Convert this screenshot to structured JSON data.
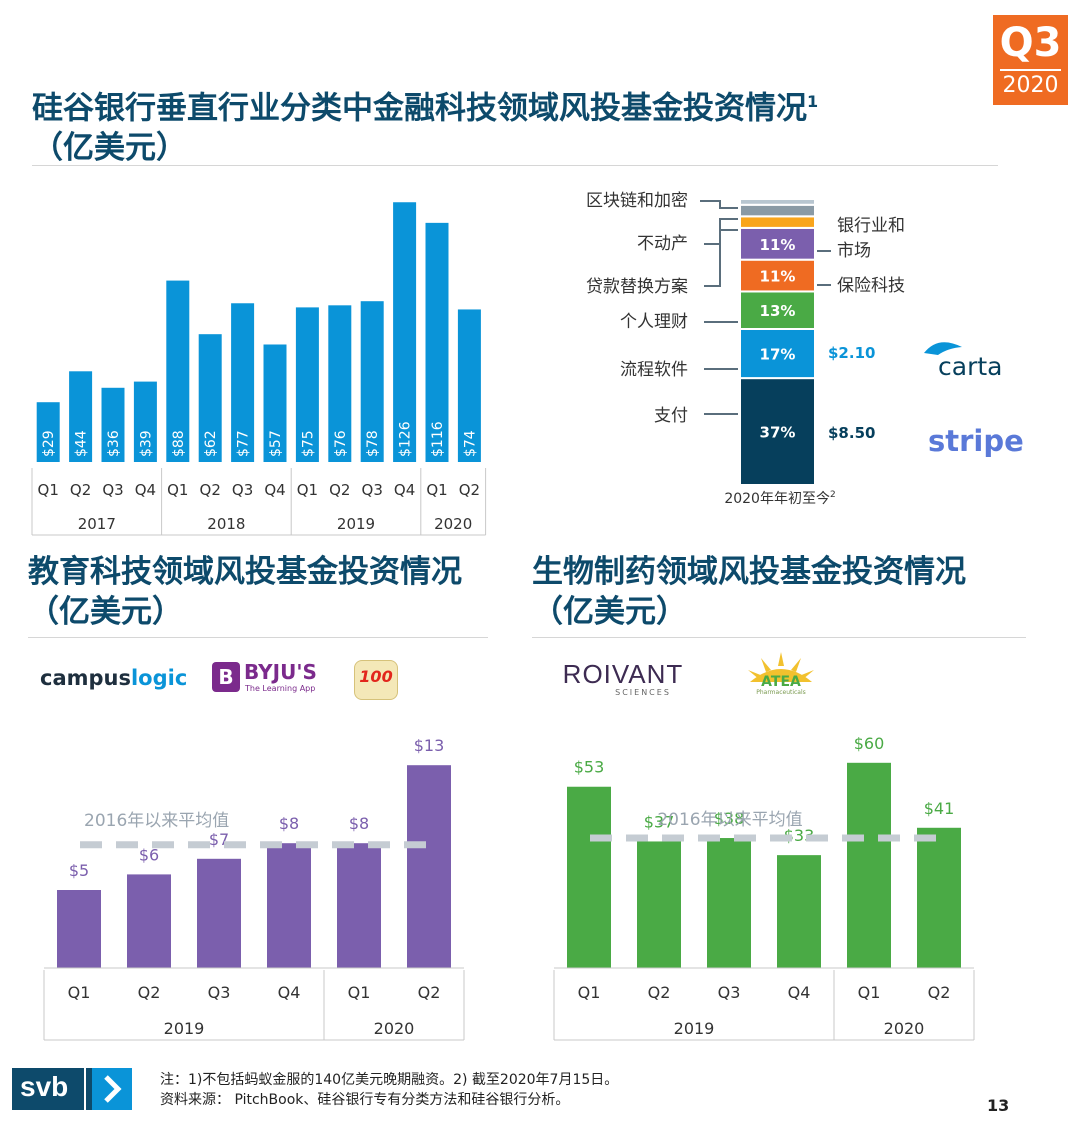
{
  "badge": {
    "quarter": "Q3",
    "year": "2020"
  },
  "fintech": {
    "title_line1": "硅谷银行垂直行业分类中金融科技领域风投基金投资情况",
    "title_sup": "1",
    "title_line2": "（亿美元）"
  },
  "edtech": {
    "title_line1": "教育科技领域风投基金投资情况",
    "title_line2": "（亿美元）",
    "logos": {
      "campus_a": "campus",
      "campus_b": "logic",
      "byjus": "BYJU'S",
      "byjus_sub": "The Learning App",
      "app100": "100"
    }
  },
  "biopharma": {
    "title_line1": "生物制药领域风投基金投资情况",
    "title_line2": "（亿美元）",
    "logos": {
      "roivant": "ROIVANT",
      "roivant_sub": "SCIENCES",
      "atea": "ATEA",
      "atea_sub": "Pharmaceuticals"
    }
  },
  "stack": {
    "xlabel": "2020年年初至今",
    "xlabel_sup": "2",
    "labels_left": [
      "区块链和加密",
      "不动产",
      "贷款替换方案",
      "个人理财",
      "流程软件",
      "支付"
    ],
    "labels_right": [
      "银行业和",
      "市场",
      "保险科技"
    ],
    "amounts": [
      "$2.10",
      "$8.50"
    ],
    "logos": [
      "carta",
      "stripe"
    ]
  },
  "footer": {
    "logo": "svb",
    "note1": "注：1)不包括蚂蚁金服的140亿美元晚期融资。2) 截至2020年7月15日。",
    "note2": "资料来源： PitchBook、硅谷银行专有分类方法和硅谷银行分析。",
    "page": "13"
  },
  "chart_data": [
    {
      "type": "bar",
      "title": "硅谷银行垂直行业分类中金融科技领域风投基金投资情况（亿美元）",
      "categories": [
        "Q1",
        "Q2",
        "Q3",
        "Q4",
        "Q1",
        "Q2",
        "Q3",
        "Q4",
        "Q1",
        "Q2",
        "Q3",
        "Q4",
        "Q1",
        "Q2"
      ],
      "groups": [
        {
          "label": "2017",
          "count": 4
        },
        {
          "label": "2018",
          "count": 4
        },
        {
          "label": "2019",
          "count": 4
        },
        {
          "label": "2020",
          "count": 2
        }
      ],
      "values": [
        29,
        44,
        36,
        39,
        88,
        62,
        77,
        57,
        75,
        76,
        78,
        126,
        116,
        74
      ],
      "value_labels": [
        "$29",
        "$44",
        "$36",
        "$39",
        "$88",
        "$62",
        "$77",
        "$57",
        "$75",
        "$76",
        "$78",
        "$126",
        "$116",
        "$74"
      ],
      "ylim": [
        0,
        130
      ],
      "color": "#0a94d8"
    },
    {
      "type": "stacked-bar",
      "title": "2020年年初至今",
      "series": [
        {
          "name": "支付",
          "value": 37,
          "label": "37%",
          "color": "#063f5c"
        },
        {
          "name": "流程软件",
          "value": 17,
          "label": "17%",
          "color": "#0a94d8"
        },
        {
          "name": "个人理财",
          "value": 13,
          "label": "13%",
          "color": "#4aaa45"
        },
        {
          "name": "保险科技",
          "value": 11,
          "label": "11%",
          "color": "#ef6b22"
        },
        {
          "name": "银行业和市场",
          "value": 11,
          "label": "11%",
          "color": "#7b5fad"
        },
        {
          "name": "不动产",
          "value": 4,
          "label": "",
          "color": "#f9a51c"
        },
        {
          "name": "贷款替换方案",
          "value": 4,
          "label": "",
          "color": "#8a9aa5"
        },
        {
          "name": "区块链和加密",
          "value": 2,
          "label": "",
          "color": "#b8c6d0"
        }
      ]
    },
    {
      "type": "bar",
      "title": "教育科技领域风投基金投资情况（亿美元）",
      "categories": [
        "Q1",
        "Q2",
        "Q3",
        "Q4",
        "Q1",
        "Q2"
      ],
      "groups": [
        {
          "label": "2019",
          "count": 4
        },
        {
          "label": "2020",
          "count": 2
        }
      ],
      "values": [
        5,
        6,
        7,
        8,
        8,
        13
      ],
      "value_labels": [
        "$5",
        "$6",
        "$7",
        "$8",
        "$8",
        "$13"
      ],
      "reference_line": {
        "label": "2016年以来平均值",
        "value": 7.9
      },
      "ylim": [
        0,
        14
      ],
      "color": "#7b5fad"
    },
    {
      "type": "bar",
      "title": "生物制药领域风投基金投资情况（亿美元）",
      "categories": [
        "Q1",
        "Q2",
        "Q3",
        "Q4",
        "Q1",
        "Q2"
      ],
      "groups": [
        {
          "label": "2019",
          "count": 4
        },
        {
          "label": "2020",
          "count": 2
        }
      ],
      "values": [
        53,
        37,
        38,
        33,
        60,
        41
      ],
      "value_labels": [
        "$53",
        "$37",
        "$38",
        "$33",
        "$60",
        "$41"
      ],
      "reference_line": {
        "label": "2016年以来平均值",
        "value": 38
      },
      "ylim": [
        0,
        66
      ],
      "color": "#4aaa45"
    }
  ]
}
